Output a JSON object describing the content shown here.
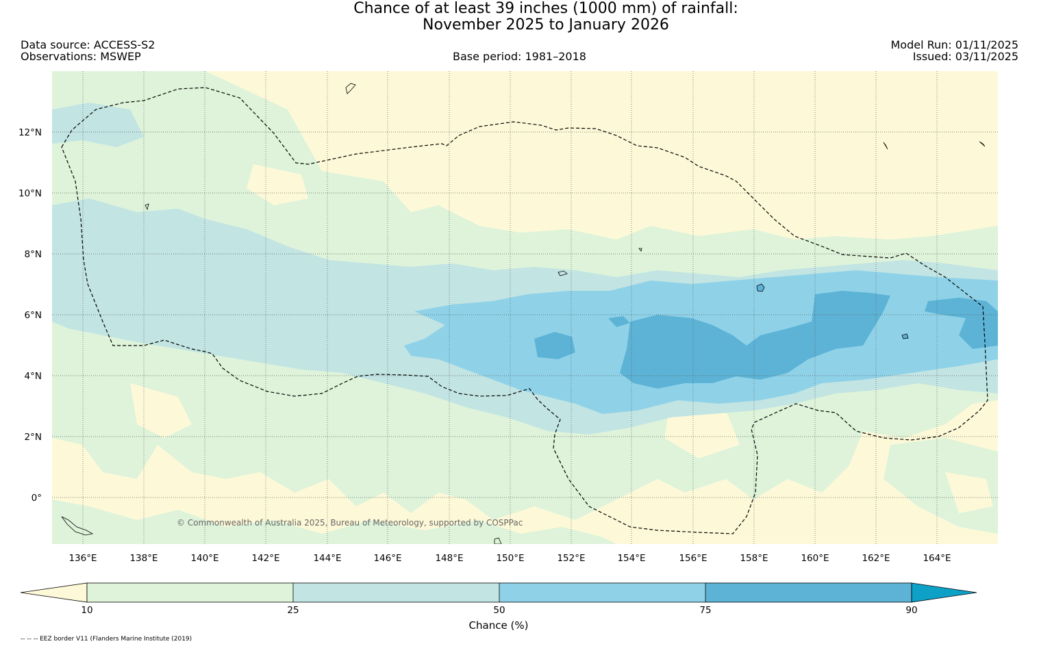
{
  "title": {
    "line1": "Chance of at least 39 inches (1000  mm) of rainfall:",
    "line2": "November 2025 to January 2026"
  },
  "meta": {
    "data_source": "Data source: ACCESS-S2",
    "observations": "Observations: MSWEP",
    "base_period": "Base period: 1981–2018",
    "model_run": "Model Run: 01/11/2025",
    "issued": "Issued: 03/11/2025"
  },
  "map": {
    "lat_ticks": [
      "12°N",
      "10°N",
      "8°N",
      "6°N",
      "4°N",
      "2°N",
      "0°"
    ],
    "lon_ticks": [
      "136°E",
      "138°E",
      "140°E",
      "142°E",
      "144°E",
      "146°E",
      "148°E",
      "150°E",
      "152°E",
      "154°E",
      "156°E",
      "158°E",
      "160°E",
      "162°E",
      "164°E"
    ],
    "copyright": "© Commonwealth of Australia 2025, Bureau of Meteorology, supported by COSPPac",
    "colors": {
      "lt10": "#fdf9d8",
      "c10_25": "#def3da",
      "c25_50": "#c2e4e3",
      "c50_75": "#8fd2e8",
      "c75_90": "#5db3d6",
      "gt90": "#0ea1c8"
    }
  },
  "colorbar": {
    "tick_labels": [
      "10",
      "25",
      "50",
      "75",
      "90"
    ],
    "label": "Chance (%)"
  },
  "footnote": "-- -- -- EEZ border V11 (Flanders Marine Institute (2019)"
}
